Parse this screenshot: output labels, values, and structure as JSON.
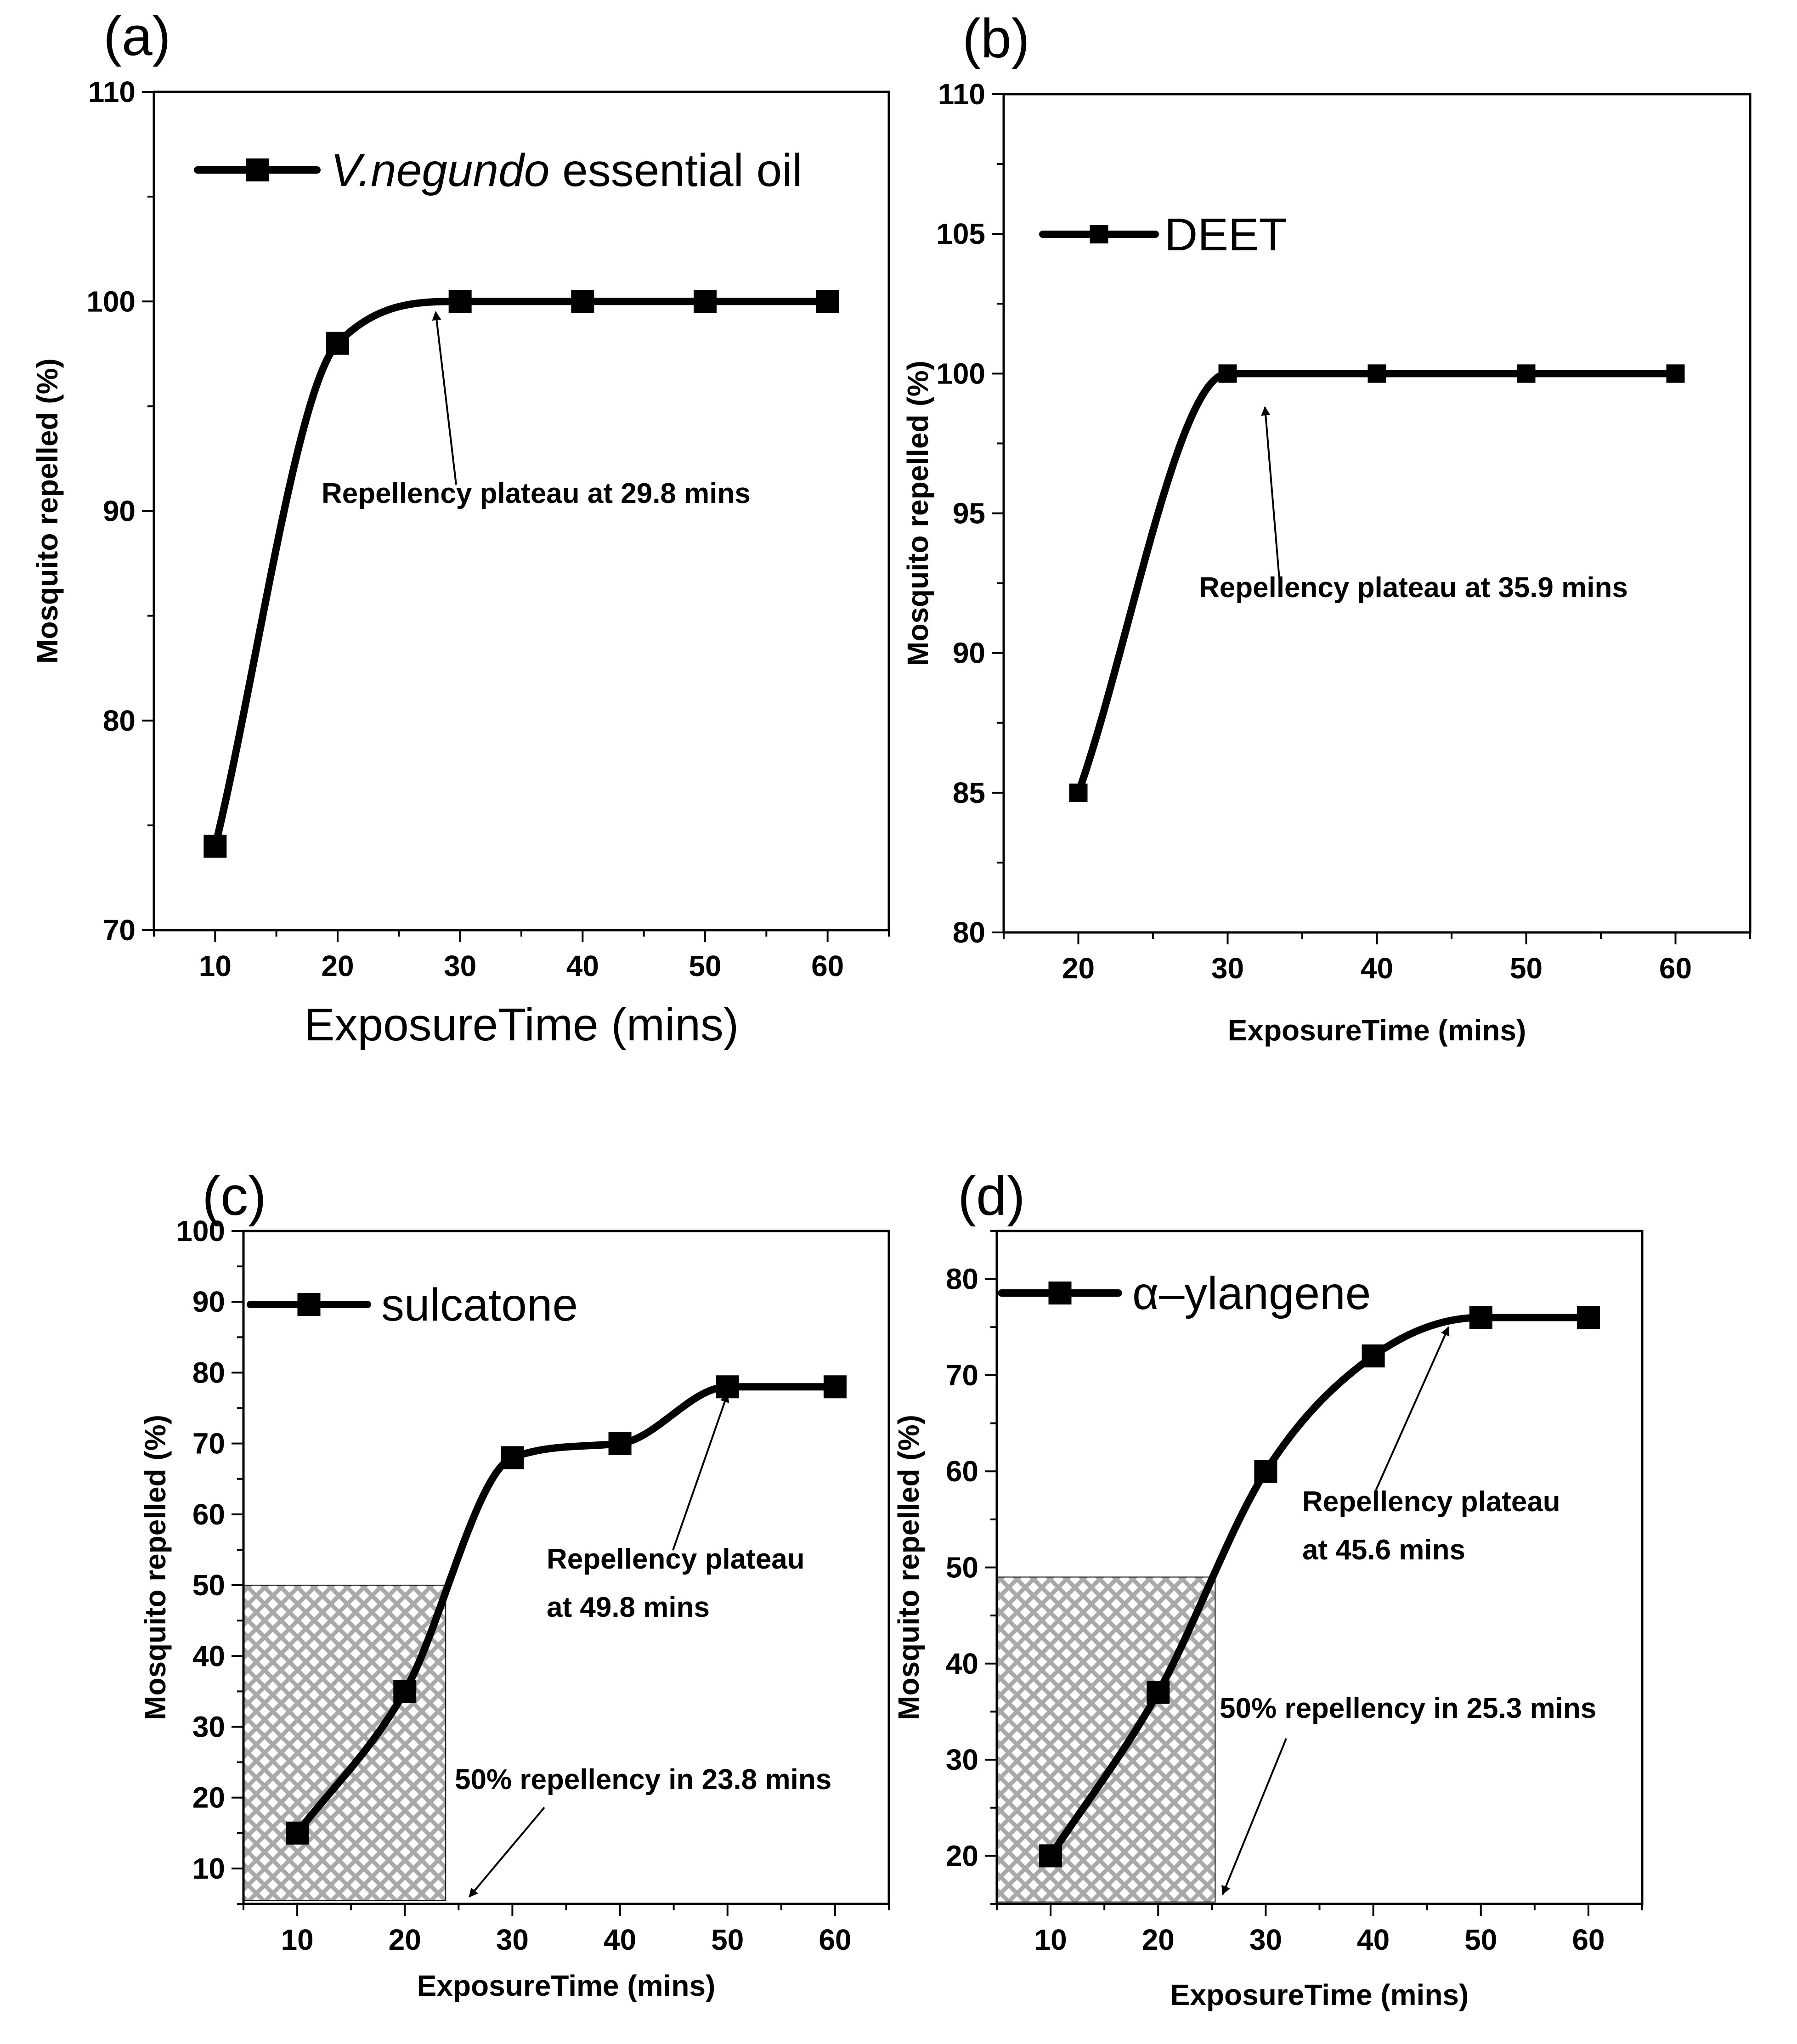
{
  "chart_data": [
    {
      "type": "line",
      "panel_label": "(a)",
      "x": [
        10,
        20,
        30,
        40,
        50,
        60
      ],
      "series": [
        {
          "name": "V.negundo essential oil",
          "values": [
            74,
            98,
            100,
            100,
            100,
            100
          ]
        }
      ],
      "legend": {
        "italic_part": "V.negundo",
        "rest": " essential oil"
      },
      "xlabel": "ExposureTime (mins)",
      "ylabel": "Mosquito  repelled (%)",
      "xlim": [
        5,
        65
      ],
      "ylim": [
        70,
        110
      ],
      "xticks": [
        10,
        20,
        30,
        40,
        50,
        60
      ],
      "yticks": [
        70,
        80,
        90,
        100,
        110
      ],
      "annotations": [
        {
          "text": "Repellency plateau at 29.8 mins",
          "arrow_to": [
            28,
            99.5
          ]
        }
      ]
    },
    {
      "type": "line",
      "panel_label": "(b)",
      "x": [
        20,
        30,
        40,
        50,
        60
      ],
      "series": [
        {
          "name": "DEET",
          "values": [
            85,
            100,
            100,
            100,
            100
          ]
        }
      ],
      "legend": {
        "italic_part": "",
        "rest": "DEET"
      },
      "xlabel": "ExposureTime (mins)",
      "ylabel": "Mosquito  repelled (%)",
      "xlim": [
        15,
        65
      ],
      "ylim": [
        80,
        110
      ],
      "xticks": [
        20,
        30,
        40,
        50,
        60
      ],
      "yticks": [
        80,
        85,
        90,
        95,
        100,
        105,
        110
      ],
      "annotations": [
        {
          "text": "Repellency plateau at 35.9 mins",
          "arrow_to": [
            32.5,
            98.8
          ]
        }
      ]
    },
    {
      "type": "line",
      "panel_label": "(c)",
      "x": [
        10,
        20,
        30,
        40,
        50,
        60
      ],
      "series": [
        {
          "name": "sulcatone",
          "values": [
            15,
            35,
            68,
            70,
            78,
            78
          ]
        }
      ],
      "legend": {
        "italic_part": "",
        "rest": "sulcatone"
      },
      "xlabel": "ExposureTime (mins)",
      "ylabel": "Mosquito repelled (%)",
      "xlim": [
        5,
        65
      ],
      "ylim": [
        5,
        100
      ],
      "xticks": [
        10,
        20,
        30,
        40,
        50,
        60
      ],
      "yticks": [
        10,
        20,
        30,
        40,
        50,
        60,
        70,
        80,
        90,
        100
      ],
      "shaded_region": {
        "x": [
          5,
          23.8
        ],
        "y": [
          5.5,
          50
        ]
      },
      "annotations": [
        {
          "text": "Repellency plateau",
          "text2": "at 49.8 mins",
          "arrow_to": [
            50,
            77
          ]
        },
        {
          "text": "50% repellency in 23.8 mins",
          "arrow_to": [
            26,
            6
          ]
        }
      ]
    },
    {
      "type": "line",
      "panel_label": "(d)",
      "x": [
        10,
        20,
        30,
        40,
        50,
        60
      ],
      "series": [
        {
          "name": "α–ylangene",
          "values": [
            20,
            37,
            60,
            72,
            76,
            76
          ]
        }
      ],
      "legend": {
        "italic_part": "",
        "rest": "α–ylangene"
      },
      "xlabel": "ExposureTime (mins)",
      "ylabel": "Mosquito repelled (%)",
      "xlim": [
        5,
        65
      ],
      "ylim": [
        15,
        85
      ],
      "xticks": [
        10,
        20,
        30,
        40,
        50,
        60
      ],
      "yticks": [
        20,
        30,
        40,
        50,
        60,
        70,
        80
      ],
      "shaded_region": {
        "x": [
          5,
          25.3
        ],
        "y": [
          15.2,
          49
        ]
      },
      "annotations": [
        {
          "text": "Repellency plateau",
          "text2": "at 45.6 mins",
          "arrow_to": [
            47,
            75
          ]
        },
        {
          "text": "50% repellency in 25.3 mins",
          "arrow_to": [
            26,
            16
          ]
        }
      ]
    }
  ]
}
